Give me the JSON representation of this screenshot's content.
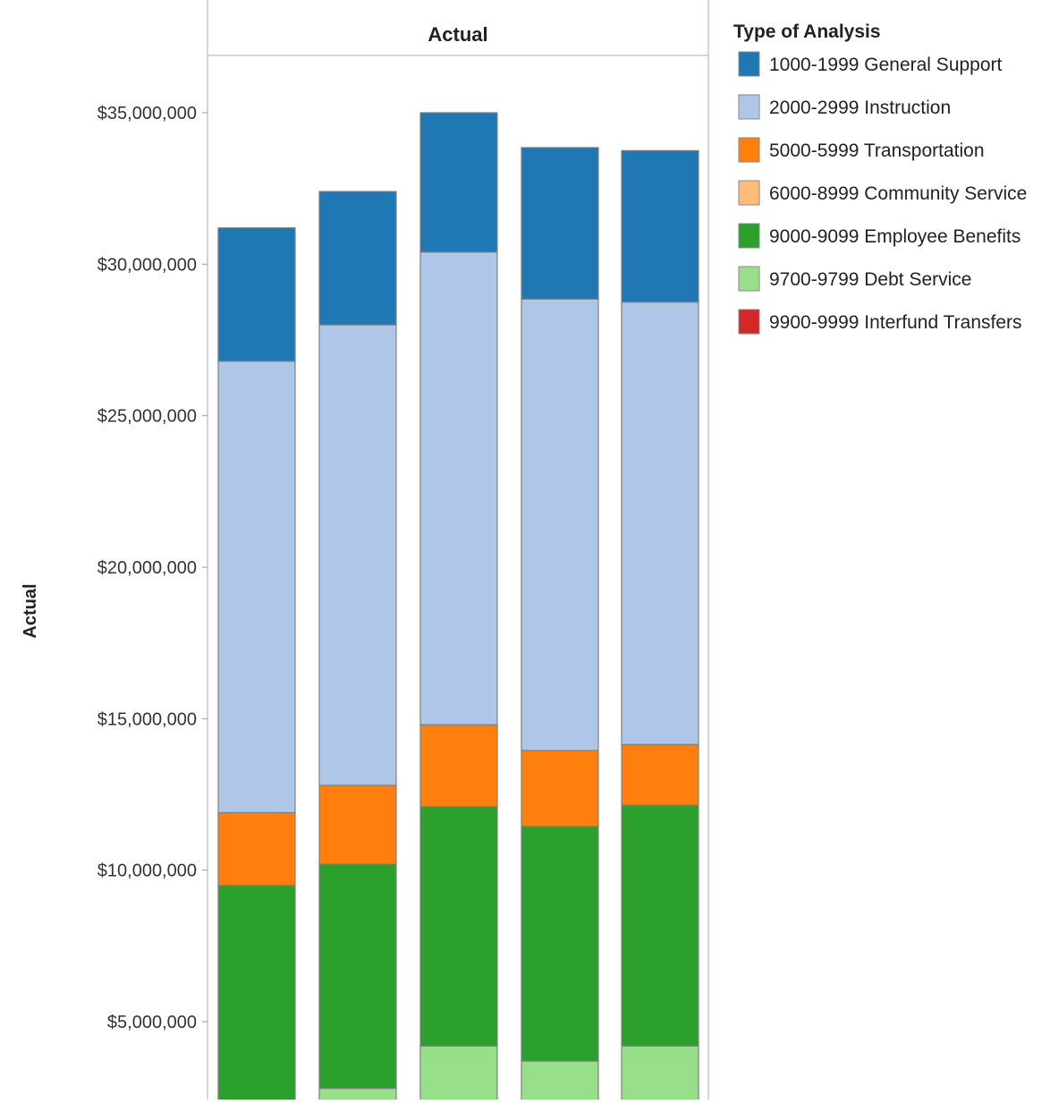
{
  "chart_data": {
    "type": "bar",
    "stacked": true,
    "panel_title": "Actual",
    "ylabel": "Actual",
    "xlabel": "",
    "y_ticks": [
      5000000,
      10000000,
      15000000,
      20000000,
      25000000,
      30000000,
      35000000
    ],
    "y_tick_labels": [
      "$5,000,000",
      "$10,000,000",
      "$15,000,000",
      "$20,000,000",
      "$25,000,000",
      "$30,000,000",
      "$35,000,000"
    ],
    "y_visible_range": [
      2000000,
      37000000
    ],
    "legend_title": "Type of Analysis",
    "legend_position": "right",
    "categories": [
      "",
      "",
      "",
      "",
      ""
    ],
    "series": [
      {
        "name": "9700-9799 Debt Service",
        "color": "#98df8a",
        "values": [
          0,
          2800000,
          4200000,
          3700000,
          4200000
        ]
      },
      {
        "name": "9000-9099 Employee Benefits",
        "color": "#2ca02c",
        "values": [
          9500000,
          7400000,
          7900000,
          7750000,
          7950000
        ]
      },
      {
        "name": "9900-9999 Interfund Transfers",
        "color": "#d62728",
        "values": [
          0,
          0,
          0,
          0,
          0
        ]
      },
      {
        "name": "6000-8999 Community Service",
        "color": "#ffbb78",
        "values": [
          0,
          0,
          0,
          0,
          0
        ]
      },
      {
        "name": "5000-5999 Transportation",
        "color": "#ff7f0e",
        "values": [
          2400000,
          2600000,
          2700000,
          2500000,
          2000000
        ]
      },
      {
        "name": "2000-2999 Instruction",
        "color": "#aec7e8",
        "values": [
          14900000,
          15200000,
          15600000,
          14900000,
          14600000
        ]
      },
      {
        "name": "1000-1999 General Support",
        "color": "#1f77b4",
        "values": [
          4400000,
          4400000,
          4600000,
          5000000,
          5000000
        ]
      }
    ],
    "legend_order": [
      "1000-1999 General Support",
      "2000-2999 Instruction",
      "5000-5999 Transportation",
      "6000-8999 Community Service",
      "9000-9099 Employee Benefits",
      "9700-9799 Debt Service",
      "9900-9999 Interfund Transfers"
    ],
    "grid": false
  }
}
